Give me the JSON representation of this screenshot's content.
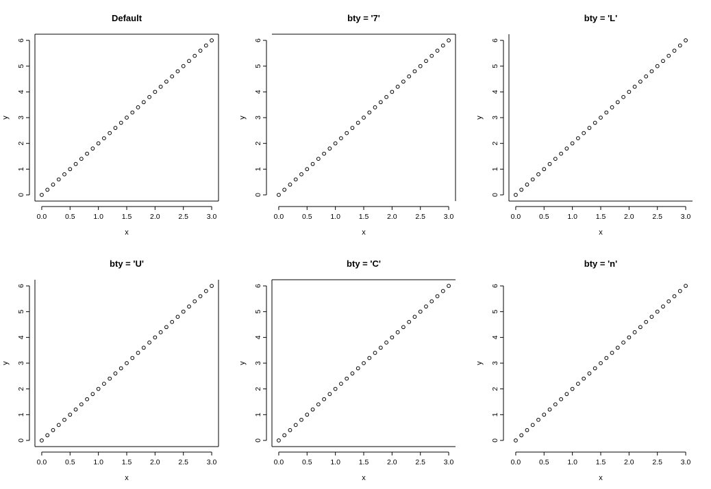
{
  "chart_data": [
    {
      "type": "scatter",
      "title": "Default",
      "xlabel": "x",
      "ylabel": "y",
      "bty": "o",
      "x": [
        0.0,
        0.1,
        0.2,
        0.3,
        0.4,
        0.5,
        0.6,
        0.7,
        0.8,
        0.9,
        1.0,
        1.1,
        1.2,
        1.3,
        1.4,
        1.5,
        1.6,
        1.7,
        1.8,
        1.9,
        2.0,
        2.1,
        2.2,
        2.3,
        2.4,
        2.5,
        2.6,
        2.7,
        2.8,
        2.9,
        3.0
      ],
      "y": [
        0.0,
        0.2,
        0.4,
        0.6,
        0.8,
        1.0,
        1.2,
        1.4,
        1.6,
        1.8,
        2.0,
        2.2,
        2.4,
        2.6,
        2.8,
        3.0,
        3.2,
        3.4,
        3.6,
        3.8,
        4.0,
        4.2,
        4.4,
        4.6,
        4.8,
        5.0,
        5.2,
        5.4,
        5.6,
        5.8,
        6.0
      ],
      "xticks": [
        "0.0",
        "0.5",
        "1.0",
        "1.5",
        "2.0",
        "2.5",
        "3.0"
      ],
      "yticks": [
        "0",
        "1",
        "2",
        "3",
        "4",
        "5",
        "6"
      ],
      "xlim": [
        -0.12,
        3.12
      ],
      "ylim": [
        -0.24,
        6.24
      ],
      "marker": "open-circle",
      "grid": false
    },
    {
      "type": "scatter",
      "title": "bty = '7'",
      "xlabel": "x",
      "ylabel": "y",
      "bty": "7",
      "x": [
        0.0,
        0.1,
        0.2,
        0.3,
        0.4,
        0.5,
        0.6,
        0.7,
        0.8,
        0.9,
        1.0,
        1.1,
        1.2,
        1.3,
        1.4,
        1.5,
        1.6,
        1.7,
        1.8,
        1.9,
        2.0,
        2.1,
        2.2,
        2.3,
        2.4,
        2.5,
        2.6,
        2.7,
        2.8,
        2.9,
        3.0
      ],
      "y": [
        0.0,
        0.2,
        0.4,
        0.6,
        0.8,
        1.0,
        1.2,
        1.4,
        1.6,
        1.8,
        2.0,
        2.2,
        2.4,
        2.6,
        2.8,
        3.0,
        3.2,
        3.4,
        3.6,
        3.8,
        4.0,
        4.2,
        4.4,
        4.6,
        4.8,
        5.0,
        5.2,
        5.4,
        5.6,
        5.8,
        6.0
      ],
      "xticks": [
        "0.0",
        "0.5",
        "1.0",
        "1.5",
        "2.0",
        "2.5",
        "3.0"
      ],
      "yticks": [
        "0",
        "1",
        "2",
        "3",
        "4",
        "5",
        "6"
      ],
      "xlim": [
        -0.12,
        3.12
      ],
      "ylim": [
        -0.24,
        6.24
      ],
      "marker": "open-circle",
      "grid": false
    },
    {
      "type": "scatter",
      "title": "bty = 'L'",
      "xlabel": "x",
      "ylabel": "y",
      "bty": "L",
      "x": [
        0.0,
        0.1,
        0.2,
        0.3,
        0.4,
        0.5,
        0.6,
        0.7,
        0.8,
        0.9,
        1.0,
        1.1,
        1.2,
        1.3,
        1.4,
        1.5,
        1.6,
        1.7,
        1.8,
        1.9,
        2.0,
        2.1,
        2.2,
        2.3,
        2.4,
        2.5,
        2.6,
        2.7,
        2.8,
        2.9,
        3.0
      ],
      "y": [
        0.0,
        0.2,
        0.4,
        0.6,
        0.8,
        1.0,
        1.2,
        1.4,
        1.6,
        1.8,
        2.0,
        2.2,
        2.4,
        2.6,
        2.8,
        3.0,
        3.2,
        3.4,
        3.6,
        3.8,
        4.0,
        4.2,
        4.4,
        4.6,
        4.8,
        5.0,
        5.2,
        5.4,
        5.6,
        5.8,
        6.0
      ],
      "xticks": [
        "0.0",
        "0.5",
        "1.0",
        "1.5",
        "2.0",
        "2.5",
        "3.0"
      ],
      "yticks": [
        "0",
        "1",
        "2",
        "3",
        "4",
        "5",
        "6"
      ],
      "xlim": [
        -0.12,
        3.12
      ],
      "ylim": [
        -0.24,
        6.24
      ],
      "marker": "open-circle",
      "grid": false
    },
    {
      "type": "scatter",
      "title": "bty = 'U'",
      "xlabel": "x",
      "ylabel": "y",
      "bty": "U",
      "x": [
        0.0,
        0.1,
        0.2,
        0.3,
        0.4,
        0.5,
        0.6,
        0.7,
        0.8,
        0.9,
        1.0,
        1.1,
        1.2,
        1.3,
        1.4,
        1.5,
        1.6,
        1.7,
        1.8,
        1.9,
        2.0,
        2.1,
        2.2,
        2.3,
        2.4,
        2.5,
        2.6,
        2.7,
        2.8,
        2.9,
        3.0
      ],
      "y": [
        0.0,
        0.2,
        0.4,
        0.6,
        0.8,
        1.0,
        1.2,
        1.4,
        1.6,
        1.8,
        2.0,
        2.2,
        2.4,
        2.6,
        2.8,
        3.0,
        3.2,
        3.4,
        3.6,
        3.8,
        4.0,
        4.2,
        4.4,
        4.6,
        4.8,
        5.0,
        5.2,
        5.4,
        5.6,
        5.8,
        6.0
      ],
      "xticks": [
        "0.0",
        "0.5",
        "1.0",
        "1.5",
        "2.0",
        "2.5",
        "3.0"
      ],
      "yticks": [
        "0",
        "1",
        "2",
        "3",
        "4",
        "5",
        "6"
      ],
      "xlim": [
        -0.12,
        3.12
      ],
      "ylim": [
        -0.24,
        6.24
      ],
      "marker": "open-circle",
      "grid": false
    },
    {
      "type": "scatter",
      "title": "bty = 'C'",
      "xlabel": "x",
      "ylabel": "y",
      "bty": "C",
      "x": [
        0.0,
        0.1,
        0.2,
        0.3,
        0.4,
        0.5,
        0.6,
        0.7,
        0.8,
        0.9,
        1.0,
        1.1,
        1.2,
        1.3,
        1.4,
        1.5,
        1.6,
        1.7,
        1.8,
        1.9,
        2.0,
        2.1,
        2.2,
        2.3,
        2.4,
        2.5,
        2.6,
        2.7,
        2.8,
        2.9,
        3.0
      ],
      "y": [
        0.0,
        0.2,
        0.4,
        0.6,
        0.8,
        1.0,
        1.2,
        1.4,
        1.6,
        1.8,
        2.0,
        2.2,
        2.4,
        2.6,
        2.8,
        3.0,
        3.2,
        3.4,
        3.6,
        3.8,
        4.0,
        4.2,
        4.4,
        4.6,
        4.8,
        5.0,
        5.2,
        5.4,
        5.6,
        5.8,
        6.0
      ],
      "xticks": [
        "0.0",
        "0.5",
        "1.0",
        "1.5",
        "2.0",
        "2.5",
        "3.0"
      ],
      "yticks": [
        "0",
        "1",
        "2",
        "3",
        "4",
        "5",
        "6"
      ],
      "xlim": [
        -0.12,
        3.12
      ],
      "ylim": [
        -0.24,
        6.24
      ],
      "marker": "open-circle",
      "grid": false
    },
    {
      "type": "scatter",
      "title": "bty = 'n'",
      "xlabel": "x",
      "ylabel": "y",
      "bty": "n",
      "x": [
        0.0,
        0.1,
        0.2,
        0.3,
        0.4,
        0.5,
        0.6,
        0.7,
        0.8,
        0.9,
        1.0,
        1.1,
        1.2,
        1.3,
        1.4,
        1.5,
        1.6,
        1.7,
        1.8,
        1.9,
        2.0,
        2.1,
        2.2,
        2.3,
        2.4,
        2.5,
        2.6,
        2.7,
        2.8,
        2.9,
        3.0
      ],
      "y": [
        0.0,
        0.2,
        0.4,
        0.6,
        0.8,
        1.0,
        1.2,
        1.4,
        1.6,
        1.8,
        2.0,
        2.2,
        2.4,
        2.6,
        2.8,
        3.0,
        3.2,
        3.4,
        3.6,
        3.8,
        4.0,
        4.2,
        4.4,
        4.6,
        4.8,
        5.0,
        5.2,
        5.4,
        5.6,
        5.8,
        6.0
      ],
      "xticks": [
        "0.0",
        "0.5",
        "1.0",
        "1.5",
        "2.0",
        "2.5",
        "3.0"
      ],
      "yticks": [
        "0",
        "1",
        "2",
        "3",
        "4",
        "5",
        "6"
      ],
      "xlim": [
        -0.12,
        3.12
      ],
      "ylim": [
        -0.24,
        6.24
      ],
      "marker": "open-circle",
      "grid": false
    }
  ]
}
